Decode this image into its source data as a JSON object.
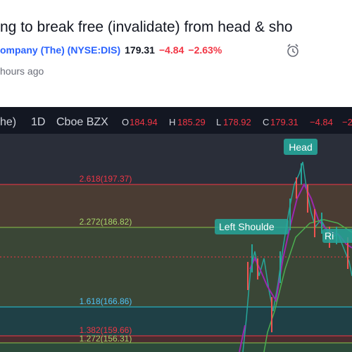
{
  "header": {
    "title": "ng to break free (invalidate) from head & sho",
    "company": "ompany (The)",
    "symbol": "(NYSE:DIS)",
    "price": "179.31",
    "change": "−4.84",
    "change_percent": "−2.63%",
    "time": "hours ago"
  },
  "toolbar": {
    "name": "he)",
    "interval": "1D",
    "exchange": "Cboe BZX",
    "open_label": "O",
    "open": "184.94",
    "high_label": "H",
    "high": "185.29",
    "low_label": "L",
    "low": "178.92",
    "close_label": "C",
    "close": "179.31",
    "change": "−4.84",
    "change_percent": "−2"
  },
  "fib_levels": [
    "2.618(197.37)",
    "2.272(186.82)",
    "1.618(166.86)",
    "1.382(159.66)",
    "1.272(156.31)"
  ],
  "annotations": [
    "Head",
    "Left Shoulde",
    "Ri"
  ]
}
